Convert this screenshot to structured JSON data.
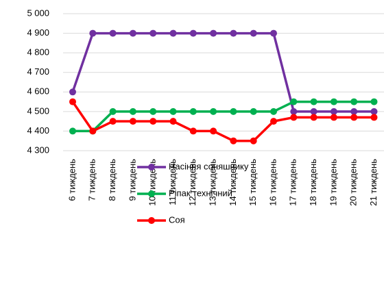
{
  "chart_data": {
    "type": "line",
    "categories": [
      "6 тиждень",
      "7 тиждень",
      "8 тиждень",
      "9 тиждень",
      "10 тиждень",
      "11 тиждень",
      "12 тиждень",
      "13 тиждень",
      "14 тиждень",
      "15 тиждень",
      "16 тиждень",
      "17 тиждень",
      "18 тиждень",
      "19 тиждень",
      "20 тиждень",
      "21 тиждень"
    ],
    "series": [
      {
        "name": "Насіння соняшнику",
        "color": "#7030a0",
        "values": [
          4600,
          4900,
          4900,
          4900,
          4900,
          4900,
          4900,
          4900,
          4900,
          4900,
          4900,
          4500,
          4500,
          4500,
          4500,
          4500
        ]
      },
      {
        "name": "Ріпак технічний",
        "color": "#00b050",
        "values": [
          4400,
          4400,
          4500,
          4500,
          4500,
          4500,
          4500,
          4500,
          4500,
          4500,
          4500,
          4550,
          4550,
          4550,
          4550,
          4550
        ]
      },
      {
        "name": "Соя",
        "color": "#ff0000",
        "values": [
          4550,
          4400,
          4450,
          4450,
          4450,
          4450,
          4400,
          4400,
          4350,
          4350,
          4450,
          4470,
          4470,
          4470,
          4470,
          4470
        ]
      }
    ],
    "ylim": [
      4300,
      5000
    ],
    "yticks": [
      {
        "value": 4300,
        "label": "4 300"
      },
      {
        "value": 4400,
        "label": "4 400"
      },
      {
        "value": 4500,
        "label": "4 500"
      },
      {
        "value": 4600,
        "label": "4 600"
      },
      {
        "value": 4700,
        "label": "4 700"
      },
      {
        "value": 4800,
        "label": "4 800"
      },
      {
        "value": 4900,
        "label": "4 900"
      },
      {
        "value": 5000,
        "label": "5 000"
      }
    ],
    "grid": true,
    "legend": "bottom"
  }
}
